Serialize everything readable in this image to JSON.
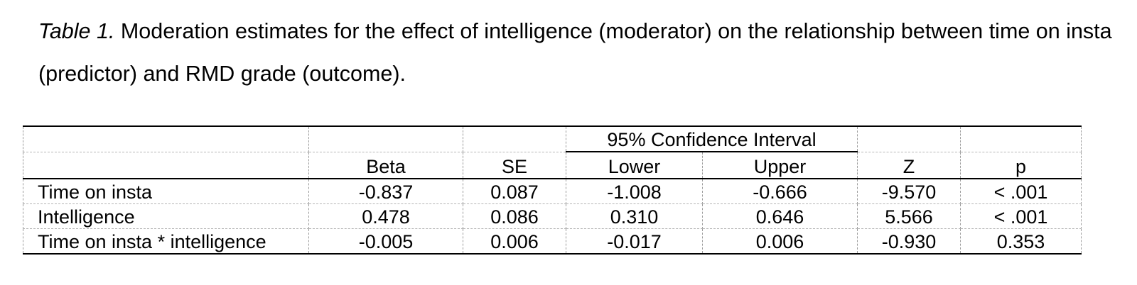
{
  "caption": {
    "label": "Table 1.",
    "text": " Moderation estimates for the effect of intelligence (moderator) on the relationship between time on insta (predictor) and RMD grade (outcome)."
  },
  "table": {
    "ci_header": "95% Confidence Interval",
    "headers": [
      "",
      "Beta",
      "SE",
      "Lower",
      "Upper",
      "Z",
      "p"
    ],
    "rows": [
      [
        "Time on insta",
        "-0.837",
        "0.087",
        "-1.008",
        "-0.666",
        "-9.570",
        "< .001"
      ],
      [
        "Intelligence",
        "0.478",
        "0.086",
        "0.310",
        "0.646",
        "5.566",
        "< .001"
      ],
      [
        "Time on insta * intelligence",
        "-0.005",
        "0.006",
        "-0.017",
        "0.006",
        "-0.930",
        "0.353"
      ]
    ]
  }
}
